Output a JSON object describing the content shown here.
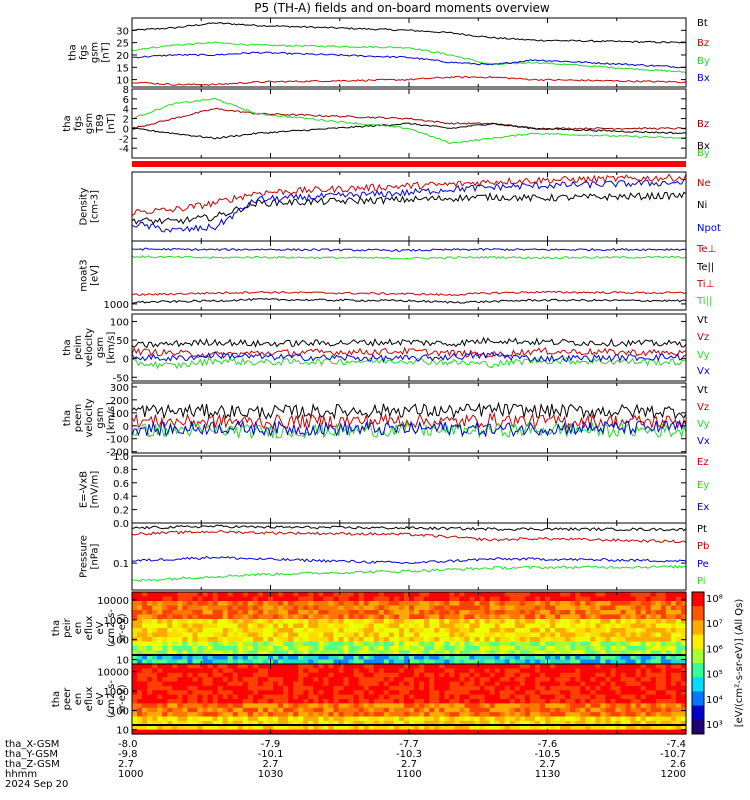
{
  "figure": {
    "title": "P5 (TH-A) fields and on-board moments overview",
    "colors": {
      "black": "#000000",
      "red": "#cc0000",
      "green": "#22dd22",
      "blue": "#0000dd",
      "darkred": "#990000"
    }
  },
  "chart_data": [
    {
      "type": "line",
      "id": "fgs_gsm",
      "ylabel": [
        "tha",
        "fgs",
        "gsm",
        "[nT]"
      ],
      "ylim": [
        7,
        35
      ],
      "yticks": [
        10,
        15,
        20,
        25,
        30
      ],
      "legend": [
        {
          "name": "Bt",
          "color": "#000000"
        },
        {
          "name": "Bz",
          "color": "#cc0000"
        },
        {
          "name": "By",
          "color": "#22dd22"
        },
        {
          "name": "Bx",
          "color": "#0000dd"
        }
      ],
      "x": [
        1000,
        1015,
        1030,
        1045,
        1100,
        1115,
        1130,
        1145,
        1200
      ],
      "series": [
        {
          "name": "Bt",
          "color": "#000000",
          "values": [
            30,
            31,
            33,
            32,
            30,
            29,
            27,
            26,
            25
          ]
        },
        {
          "name": "By",
          "color": "#22dd22",
          "values": [
            22,
            24,
            25,
            24,
            23,
            20,
            16,
            17,
            13
          ]
        },
        {
          "name": "Bx",
          "color": "#0000dd",
          "values": [
            19,
            20,
            20,
            21,
            19,
            17,
            16,
            18,
            15
          ]
        },
        {
          "name": "Bz",
          "color": "#cc0000",
          "values": [
            9,
            8,
            8,
            9,
            10,
            11,
            11,
            10,
            9
          ]
        }
      ]
    },
    {
      "type": "line",
      "id": "fgs_gsm_dt",
      "ylabel": [
        "tha",
        "fgs",
        "gsm",
        "T89",
        "[nT]"
      ],
      "ylim": [
        -6,
        8
      ],
      "yticks": [
        -4,
        -2,
        0,
        2,
        4,
        6,
        8
      ],
      "legend": [
        {
          "name": "Bz",
          "color": "#990000"
        },
        {
          "name": "Bx",
          "color": "#000000"
        },
        {
          "name": "By",
          "color": "#22dd22"
        }
      ],
      "x": [
        1000,
        1015,
        1030,
        1045,
        1100,
        1115,
        1130,
        1145,
        1200
      ],
      "series": [
        {
          "name": "Bz",
          "color": "#990000",
          "values": [
            0,
            2,
            4,
            3,
            2,
            1,
            1,
            0,
            0
          ]
        },
        {
          "name": "Bx",
          "color": "#000000",
          "values": [
            0,
            -1,
            -2,
            -1,
            1,
            0,
            1,
            0,
            -1
          ]
        },
        {
          "name": "By",
          "color": "#22dd22",
          "values": [
            2,
            5,
            6,
            3,
            0,
            -3,
            -2,
            -1,
            -2
          ]
        }
      ]
    },
    {
      "type": "line",
      "id": "density",
      "ylabel": [
        "Density",
        "[cm-3]"
      ],
      "legend": [
        {
          "name": "Ne",
          "color": "#cc0000"
        },
        {
          "name": "Ni",
          "color": "#000000"
        },
        {
          "name": "Npot",
          "color": "#0000dd"
        }
      ],
      "x": [
        1000,
        1015,
        1030,
        1045,
        1100,
        1115,
        1130,
        1145,
        1200
      ],
      "series": [
        {
          "name": "Ne",
          "color": "#cc0000",
          "values": [
            0.42,
            0.45,
            0.55,
            0.7,
            0.8,
            0.82,
            0.86,
            0.88,
            0.92
          ]
        },
        {
          "name": "Ni",
          "color": "#000000",
          "values": [
            0.3,
            0.28,
            0.35,
            0.55,
            0.6,
            0.62,
            0.64,
            0.62,
            0.66
          ]
        },
        {
          "name": "Npot",
          "color": "#0000dd",
          "values": [
            0.25,
            0.15,
            0.2,
            0.6,
            0.7,
            0.75,
            0.78,
            0.8,
            0.85
          ]
        }
      ]
    },
    {
      "type": "line",
      "id": "temperature",
      "ylabel": [
        "moat3",
        "[eV]"
      ],
      "ylim": [
        700,
        40000
      ],
      "yscale": "log",
      "yticks": [
        1000
      ],
      "legend": [
        {
          "name": "Te⊥",
          "color": "#cc0000"
        },
        {
          "name": "Te||",
          "color": "#000000"
        },
        {
          "name": "Ti⊥",
          "color": "#cc0000"
        },
        {
          "name": "Ti||",
          "color": "#22dd22"
        }
      ],
      "x": [
        1000,
        1015,
        1030,
        1045,
        1100,
        1115,
        1130,
        1145,
        1200
      ],
      "series": [
        {
          "name": "Ti⊥",
          "color": "#0000dd",
          "values": [
            25000,
            24500,
            24000,
            24500,
            23000,
            24000,
            24500,
            24000,
            24500
          ]
        },
        {
          "name": "Ti||",
          "color": "#22dd22",
          "values": [
            16000,
            15500,
            15000,
            15500,
            14500,
            15000,
            15500,
            15000,
            15500
          ]
        },
        {
          "name": "Te⊥",
          "color": "#cc0000",
          "values": [
            1700,
            1800,
            1900,
            2000,
            1800,
            1700,
            1900,
            2000,
            1900
          ]
        },
        {
          "name": "Te||",
          "color": "#000000",
          "values": [
            1100,
            1150,
            1200,
            1300,
            1200,
            1100,
            1150,
            1250,
            1200
          ]
        }
      ]
    },
    {
      "type": "line",
      "id": "peim_velocity",
      "ylabel": [
        "tha",
        "peim",
        "velocity",
        "gsm",
        "[km/s]"
      ],
      "ylim": [
        -60,
        120
      ],
      "yticks": [
        -50,
        0,
        50,
        100
      ],
      "legend": [
        {
          "name": "Vt",
          "color": "#000000"
        },
        {
          "name": "Vz",
          "color": "#cc0000"
        },
        {
          "name": "Vy",
          "color": "#22dd22"
        },
        {
          "name": "Vx",
          "color": "#0000dd"
        }
      ],
      "x": [
        1000,
        1015,
        1030,
        1045,
        1100,
        1115,
        1130,
        1145,
        1200
      ],
      "series": [
        {
          "name": "Vt",
          "color": "#000000",
          "values": [
            35,
            40,
            45,
            40,
            45,
            40,
            50,
            45,
            40
          ]
        },
        {
          "name": "Vz",
          "color": "#cc0000",
          "values": [
            20,
            15,
            10,
            15,
            20,
            15,
            10,
            20,
            15
          ]
        },
        {
          "name": "Vy",
          "color": "#22dd22",
          "values": [
            -10,
            -20,
            -5,
            -10,
            -5,
            -10,
            -15,
            -5,
            -10
          ]
        },
        {
          "name": "Vx",
          "color": "#0000dd",
          "values": [
            5,
            0,
            10,
            5,
            0,
            5,
            10,
            0,
            5
          ]
        }
      ]
    },
    {
      "type": "line",
      "id": "peem_velocity",
      "ylabel": [
        "tha",
        "peem",
        "velocity",
        "gsm",
        "[km/s]"
      ],
      "ylim": [
        -210,
        330
      ],
      "yticks": [
        -200,
        -100,
        0,
        100,
        200,
        300
      ],
      "legend": [
        {
          "name": "Vt",
          "color": "#000000"
        },
        {
          "name": "Vz",
          "color": "#cc0000"
        },
        {
          "name": "Vy",
          "color": "#22dd22"
        },
        {
          "name": "Vx",
          "color": "#0000dd"
        }
      ],
      "x": [
        1000,
        1015,
        1030,
        1045,
        1100,
        1115,
        1130,
        1145,
        1200
      ],
      "series": [
        {
          "name": "Vt",
          "color": "#000000",
          "values": [
            120,
            110,
            115,
            105,
            120,
            110,
            125,
            115,
            110
          ]
        },
        {
          "name": "Vz",
          "color": "#cc0000",
          "values": [
            40,
            30,
            35,
            30,
            40,
            30,
            45,
            35,
            30
          ]
        },
        {
          "name": "Vy",
          "color": "#22dd22",
          "values": [
            -40,
            -30,
            -35,
            -45,
            -30,
            -40,
            -35,
            -30,
            -40
          ]
        },
        {
          "name": "Vx",
          "color": "#0000dd",
          "values": [
            -20,
            -30,
            -10,
            -20,
            -25,
            -15,
            -30,
            -20,
            -10
          ]
        }
      ]
    },
    {
      "type": "line",
      "id": "efield",
      "ylabel": [
        "E=-VxB",
        "[mV/m]"
      ],
      "ylim": [
        0,
        1
      ],
      "yticks": [
        0.0,
        0.2,
        0.4,
        0.6,
        0.8,
        1.0
      ],
      "legend": [
        {
          "name": "Ez",
          "color": "#cc0000"
        },
        {
          "name": "Ey",
          "color": "#22dd22"
        },
        {
          "name": "Ex",
          "color": "#0000dd"
        }
      ],
      "x": [],
      "series": []
    },
    {
      "type": "line",
      "id": "pressure",
      "ylabel": [
        "Pressure",
        "[nPa]"
      ],
      "ylim": [
        0.03,
        0.6
      ],
      "yscale": "log",
      "yticks": [
        0.1
      ],
      "legend": [
        {
          "name": "Pt",
          "color": "#000000"
        },
        {
          "name": "Pb",
          "color": "#cc0000"
        },
        {
          "name": "Pe",
          "color": "#0000dd"
        },
        {
          "name": "Pi",
          "color": "#22dd22"
        }
      ],
      "x": [
        1000,
        1015,
        1030,
        1045,
        1100,
        1115,
        1130,
        1145,
        1200
      ],
      "series": [
        {
          "name": "Pt",
          "color": "#000000",
          "values": [
            0.48,
            0.5,
            0.52,
            0.5,
            0.48,
            0.47,
            0.46,
            0.46,
            0.45
          ]
        },
        {
          "name": "Pb",
          "color": "#cc0000",
          "values": [
            0.37,
            0.39,
            0.41,
            0.39,
            0.36,
            0.32,
            0.28,
            0.3,
            0.26
          ]
        },
        {
          "name": "Pe",
          "color": "#0000dd",
          "values": [
            0.11,
            0.12,
            0.13,
            0.12,
            0.1,
            0.11,
            0.12,
            0.12,
            0.11
          ]
        },
        {
          "name": "Pi",
          "color": "#22dd22",
          "values": [
            0.045,
            0.05,
            0.055,
            0.06,
            0.07,
            0.075,
            0.08,
            0.082,
            0.085
          ]
        }
      ]
    },
    {
      "type": "heatmap",
      "id": "peir_en_eflux",
      "ylabel": [
        "tha",
        "peir",
        "en",
        "eflux",
        "eV",
        "(cm2-s-",
        "sr-eV)"
      ],
      "ylim": [
        6,
        25000
      ],
      "yscale": "log",
      "yticks": [
        10,
        100,
        1000,
        10000
      ]
    },
    {
      "type": "heatmap",
      "id": "peer_en_eflux",
      "ylabel": [
        "tha",
        "peer",
        "en",
        "eflux",
        "eV",
        "(cm2-s-",
        "sr-eV)"
      ],
      "ylim": [
        6,
        25000
      ],
      "yscale": "log",
      "yticks": [
        10,
        100,
        1000,
        10000
      ]
    }
  ],
  "colorbar": {
    "label": "[eV/(cm²-s-sr-eV)] (All Qs)",
    "ticks": [
      "10⁸",
      "10⁷",
      "10⁶",
      "10⁵",
      "10⁴",
      "10³"
    ]
  },
  "ephemeris": {
    "rows": [
      {
        "label": "tha_X-GSM",
        "values": [
          "-8.0",
          "-7.9",
          "-7.7",
          "-7.6",
          "-7.4"
        ]
      },
      {
        "label": "tha_Y-GSM",
        "values": [
          "-9.8",
          "-10.1",
          "-10.3",
          "-10.5",
          "-10.7"
        ]
      },
      {
        "label": "tha_Z-GSM",
        "values": [
          "2.7",
          "2.7",
          "2.7",
          "2.7",
          "2.6"
        ]
      },
      {
        "label": "hhmm",
        "values": [
          "1000",
          "1030",
          "1100",
          "1130",
          "1200"
        ]
      }
    ],
    "date": "2024 Sep 20"
  }
}
